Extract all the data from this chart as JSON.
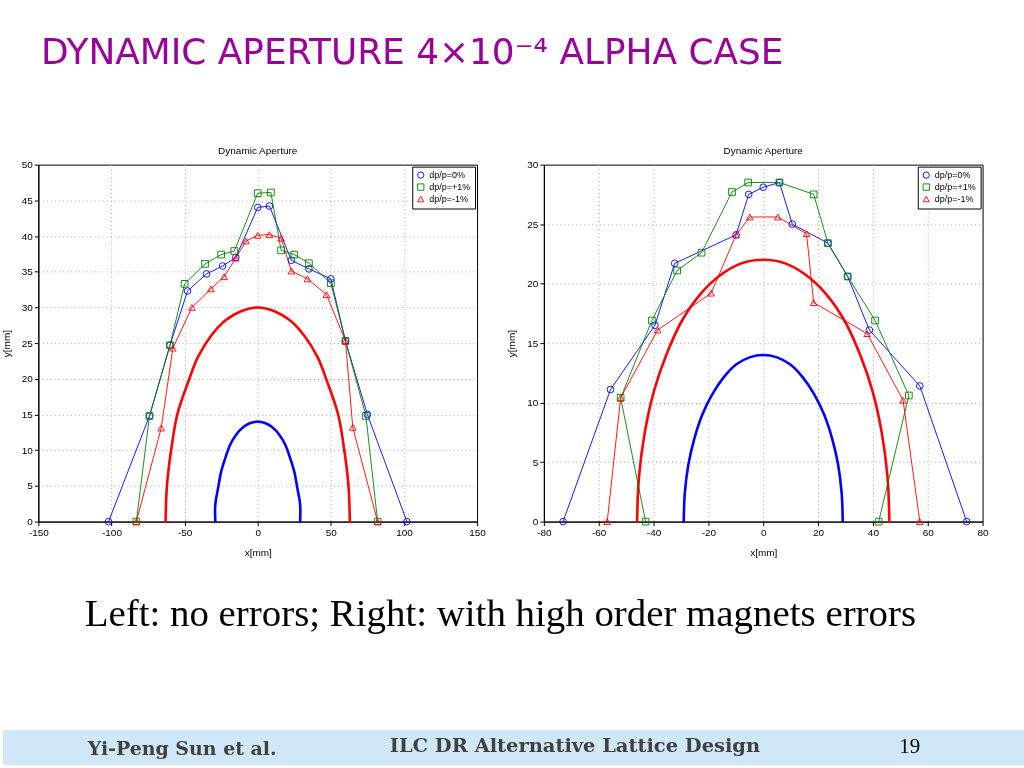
{
  "chart_data": [
    {
      "type": "line",
      "title": "Dynamic Aperture",
      "xlabel": "x[mm]",
      "ylabel": "y[mm]",
      "xlim": [
        -150,
        150
      ],
      "xticks": [
        -150,
        -100,
        -50,
        0,
        50,
        100,
        150
      ],
      "ylim": [
        0,
        50
      ],
      "yticks": [
        0,
        5,
        10,
        15,
        20,
        25,
        30,
        35,
        40,
        45,
        50
      ],
      "grid": true,
      "legend": "top right",
      "annotations": [
        "DYNAMIC APERTURE 4×10⁻⁴ ALPHA CASE",
        "Left: no errors;  Right: with high order magnets errors",
        "Yi-Peng Sun et al.",
        "ILC DR Alternative Lattice Design",
        "19"
      ],
      "series": [
        {
          "name": "dp/p=0%",
          "color": "#0000ff",
          "marker": "circle",
          "x": [
            -102,
            -74,
            -60,
            -48,
            -35,
            -24,
            -15,
            0,
            8,
            23,
            35,
            50,
            60,
            75,
            102
          ],
          "values": [
            0,
            14.8,
            24.7,
            32.3,
            34.7,
            35.8,
            37.0,
            44.0,
            44.2,
            36.6,
            35.4,
            34.0,
            25.3,
            15.0,
            0
          ]
        },
        {
          "name": "dp/p=+1%",
          "color": "#008000",
          "marker": "square",
          "x": [
            -83,
            -74,
            -60,
            -50,
            -36,
            -25,
            -16,
            0,
            9,
            16,
            25,
            35,
            50,
            60,
            74,
            82
          ],
          "values": [
            0,
            14.8,
            24.7,
            33.3,
            36.1,
            37.4,
            37.9,
            46.0,
            46.1,
            38.0,
            37.4,
            36.2,
            33.4,
            25.3,
            14.8,
            0
          ]
        },
        {
          "name": "dp/p=-1%",
          "color": "#ff0000",
          "marker": "triangle",
          "x": [
            -83,
            -66,
            -58,
            -45,
            -32,
            -23,
            -15,
            -8,
            0,
            8,
            16,
            23,
            34,
            47,
            60,
            65,
            82
          ],
          "values": [
            0,
            13.1,
            24.3,
            30.0,
            32.6,
            34.3,
            36.9,
            39.3,
            40.1,
            40.2,
            39.7,
            35.1,
            34.0,
            31.8,
            25.3,
            13.2,
            0
          ]
        },
        {
          "color": "#ff0000",
          "x": [
            -63,
            -62,
            -59,
            -55,
            -48,
            -41,
            -32,
            -22,
            -11,
            0,
            11,
            22,
            32,
            41,
            48,
            55,
            59,
            62,
            63
          ],
          "values": [
            0,
            5.2,
            10.3,
            15,
            19.3,
            23,
            26,
            28.2,
            29.5,
            30,
            29.5,
            28.2,
            26,
            23,
            19.3,
            15,
            10.3,
            5.2,
            0
          ]
        },
        {
          "color": "#0000ff",
          "x": [
            -29,
            -29,
            -27,
            -25,
            -22,
            -19,
            -15,
            -10,
            -5,
            0,
            5,
            10,
            15,
            19,
            22,
            25,
            27,
            29,
            29
          ],
          "values": [
            0,
            2.4,
            4.8,
            7,
            9,
            10.7,
            12.1,
            13.2,
            13.8,
            14,
            13.8,
            13.2,
            12.1,
            10.7,
            9,
            7,
            4.8,
            2.4,
            0
          ]
        }
      ]
    },
    {
      "type": "line",
      "title": "Dynamic Aperture",
      "xlabel": "x[mm]",
      "ylabel": "y[mm]",
      "xlim": [
        -80,
        80
      ],
      "xticks": [
        -80,
        -60,
        -40,
        -20,
        0,
        20,
        40,
        60,
        80
      ],
      "ylim": [
        0,
        30
      ],
      "yticks": [
        0,
        5,
        10,
        15,
        20,
        25,
        30
      ],
      "grid": true,
      "legend": "top right",
      "series": [
        {
          "name": "dp/p=0%",
          "color": "#0000ff",
          "marker": "circle",
          "x": [
            -73.0,
            -55.7,
            -39.5,
            -32.3,
            -9.9,
            -5.3,
            0,
            5.9,
            10.6,
            23.6,
            30.8,
            38.7,
            57.1,
            74.2
          ],
          "values": [
            0,
            11.1,
            16.5,
            21.7,
            24.1,
            27.5,
            28.1,
            28.5,
            25.0,
            23.4,
            20.6,
            16.1,
            11.4,
            0
          ]
        },
        {
          "name": "dp/p=+1%",
          "color": "#008000",
          "marker": "square",
          "x": [
            -42.9,
            -52.0,
            -40.6,
            -31.4,
            -22.5,
            -11.4,
            -5.5,
            5.9,
            18.4,
            23.6,
            30.8,
            40.8,
            53.1,
            42.1
          ],
          "values": [
            0,
            10.4,
            16.9,
            21.1,
            22.6,
            27.7,
            28.5,
            28.5,
            27.5,
            23.4,
            20.6,
            16.9,
            10.6,
            0
          ]
        },
        {
          "name": "dp/p=-1%",
          "color": "#ff0000",
          "marker": "triangle",
          "x": [
            -56.9,
            -52.0,
            -38.5,
            -19.0,
            -9.9,
            -4.9,
            5.3,
            15.8,
            18.4,
            37.9,
            51.0,
            57.1
          ],
          "values": [
            0,
            10.4,
            16.1,
            19.2,
            24.1,
            25.6,
            25.6,
            24.2,
            18.4,
            15.8,
            10.2,
            0
          ]
        },
        {
          "color": "#ff0000",
          "x": [
            -46,
            -45.3,
            -43.2,
            -39.8,
            -35.2,
            -29.6,
            -23,
            -15.7,
            -8,
            0,
            8,
            15.7,
            23,
            29.6,
            35.2,
            39.8,
            43.2,
            45.3,
            46
          ],
          "values": [
            0,
            3.8,
            7.5,
            11,
            14.1,
            16.9,
            19.1,
            20.7,
            21.7,
            22,
            21.7,
            20.7,
            19.1,
            16.9,
            14.1,
            11,
            7.5,
            3.8,
            0
          ]
        },
        {
          "color": "#0000ff",
          "x": [
            -29,
            -28.6,
            -27.3,
            -25.1,
            -22.2,
            -18.6,
            -14.5,
            -9.9,
            -5,
            0,
            5,
            9.9,
            14.5,
            18.6,
            22.2,
            25.1,
            27.3,
            28.6,
            29
          ],
          "values": [
            0,
            2.4,
            4.8,
            7,
            9,
            10.7,
            12.1,
            13.2,
            13.8,
            14,
            13.8,
            13.2,
            12.1,
            10.7,
            9,
            7,
            4.8,
            2.4,
            0
          ]
        }
      ]
    }
  ]
}
